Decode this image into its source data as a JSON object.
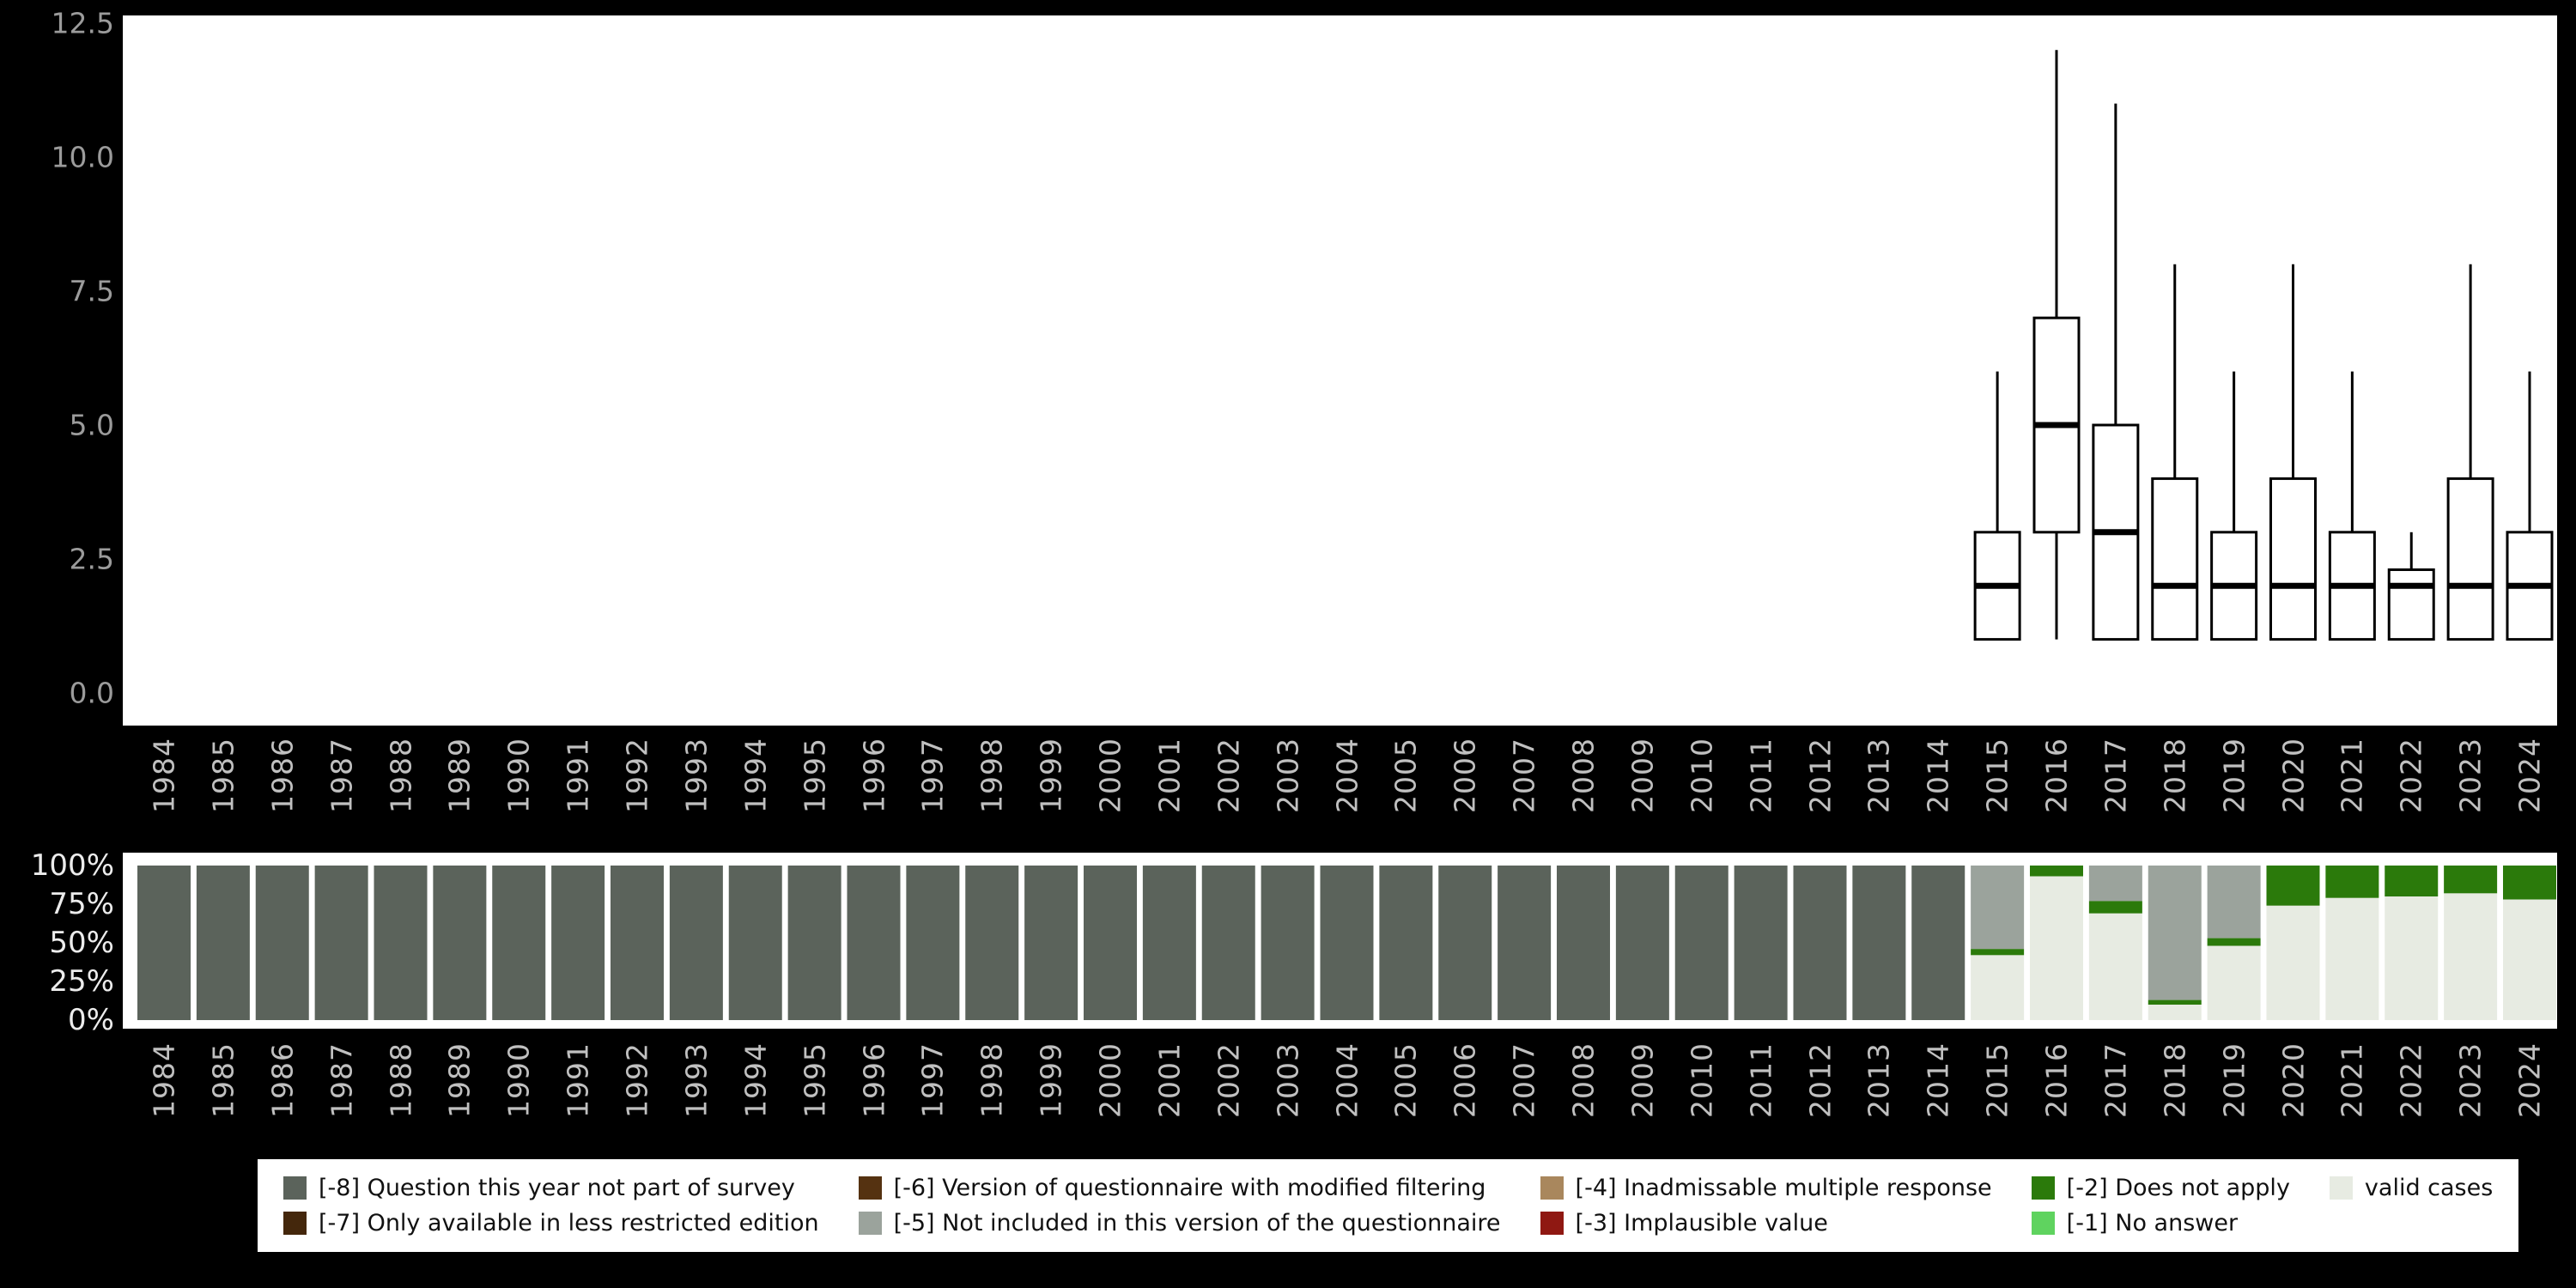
{
  "colors": {
    "background": "#000000",
    "panel_background": "#ffffff",
    "box_stroke": "#000000",
    "axis_text_top": "#9b9b9b",
    "axis_text_percent": "#ececec",
    "axis_text_years": "#c0c0c0"
  },
  "palette": {
    "-8": "#5b635b",
    "-7": "#44270c",
    "-6": "#553211",
    "-5": "#9ba39c",
    "-4": "#a9875d",
    "-3": "#8f1812",
    "-2": "#2b7a0b",
    "-1": "#5fd35f",
    "valid": "#e7ebe2"
  },
  "legend": {
    "items": [
      {
        "key": "-8",
        "label": "[-8] Question this year not part of survey"
      },
      {
        "key": "-7",
        "label": "[-7] Only available in less restricted edition"
      },
      {
        "key": "-6",
        "label": "[-6] Version of questionnaire with modified filtering"
      },
      {
        "key": "-5",
        "label": "[-5] Not included in this version of the questionnaire"
      },
      {
        "key": "-4",
        "label": "[-4] Inadmissable multiple response"
      },
      {
        "key": "-3",
        "label": "[-3] Implausible value"
      },
      {
        "key": "-2",
        "label": "[-2] Does not apply"
      },
      {
        "key": "-1",
        "label": "[-1] No answer"
      },
      {
        "key": "valid",
        "label": "valid cases"
      }
    ]
  },
  "chart_data": [
    {
      "type": "boxplot",
      "title": "",
      "xlabel": "",
      "ylabel": "",
      "ylim": [
        0,
        12.5
      ],
      "yticks": [
        {
          "label": "0.0",
          "value": 0
        },
        {
          "label": "2.5",
          "value": 2.5
        },
        {
          "label": "5.0",
          "value": 5
        },
        {
          "label": "7.5",
          "value": 7.5
        },
        {
          "label": "10.0",
          "value": 10
        },
        {
          "label": "12.5",
          "value": 12.5
        }
      ],
      "categories": [
        "1984",
        "1985",
        "1986",
        "1987",
        "1988",
        "1989",
        "1990",
        "1991",
        "1992",
        "1993",
        "1994",
        "1995",
        "1996",
        "1997",
        "1998",
        "1999",
        "2000",
        "2001",
        "2002",
        "2003",
        "2004",
        "2005",
        "2006",
        "2007",
        "2008",
        "2009",
        "2010",
        "2011",
        "2012",
        "2013",
        "2014",
        "2015",
        "2016",
        "2017",
        "2018",
        "2019",
        "2020",
        "2021",
        "2022",
        "2023",
        "2024"
      ],
      "boxes": [
        {
          "year": "2015",
          "lo": 1,
          "q1": 1,
          "med": 2,
          "q3": 3,
          "hi": 6
        },
        {
          "year": "2016",
          "lo": 1,
          "q1": 3,
          "med": 5,
          "q3": 7,
          "hi": 12
        },
        {
          "year": "2017",
          "lo": 1,
          "q1": 1,
          "med": 3,
          "q3": 5,
          "hi": 11
        },
        {
          "year": "2018",
          "lo": 1,
          "q1": 1,
          "med": 2,
          "q3": 4,
          "hi": 8
        },
        {
          "year": "2019",
          "lo": 1,
          "q1": 1,
          "med": 2,
          "q3": 3,
          "hi": 6
        },
        {
          "year": "2020",
          "lo": 1,
          "q1": 1,
          "med": 2,
          "q3": 4,
          "hi": 8
        },
        {
          "year": "2021",
          "lo": 1,
          "q1": 1,
          "med": 2,
          "q3": 3,
          "hi": 6
        },
        {
          "year": "2022",
          "lo": 1,
          "q1": 1,
          "med": 2,
          "q3": 2.3,
          "hi": 3
        },
        {
          "year": "2023",
          "lo": 1,
          "q1": 1,
          "med": 2,
          "q3": 4,
          "hi": 8
        },
        {
          "year": "2024",
          "lo": 1,
          "q1": 1,
          "med": 2,
          "q3": 3,
          "hi": 6
        }
      ]
    },
    {
      "type": "bar",
      "stacked": true,
      "percent": true,
      "title": "",
      "xlabel": "",
      "ylabel": "",
      "ylim": [
        0,
        100
      ],
      "yticks": [
        {
          "label": "0%",
          "value": 0
        },
        {
          "label": "25%",
          "value": 25
        },
        {
          "label": "50%",
          "value": 50
        },
        {
          "label": "75%",
          "value": 75
        },
        {
          "label": "100%",
          "value": 100
        }
      ],
      "categories": [
        "1984",
        "1985",
        "1986",
        "1987",
        "1988",
        "1989",
        "1990",
        "1991",
        "1992",
        "1993",
        "1994",
        "1995",
        "1996",
        "1997",
        "1998",
        "1999",
        "2000",
        "2001",
        "2002",
        "2003",
        "2004",
        "2005",
        "2006",
        "2007",
        "2008",
        "2009",
        "2010",
        "2011",
        "2012",
        "2013",
        "2014",
        "2015",
        "2016",
        "2017",
        "2018",
        "2019",
        "2020",
        "2021",
        "2022",
        "2023",
        "2024"
      ],
      "bars": [
        {
          "year": "1984",
          "segments": [
            {
              "key": "-8",
              "value": 100
            }
          ]
        },
        {
          "year": "1985",
          "segments": [
            {
              "key": "-8",
              "value": 100
            }
          ]
        },
        {
          "year": "1986",
          "segments": [
            {
              "key": "-8",
              "value": 100
            }
          ]
        },
        {
          "year": "1987",
          "segments": [
            {
              "key": "-8",
              "value": 100
            }
          ]
        },
        {
          "year": "1988",
          "segments": [
            {
              "key": "-8",
              "value": 100
            }
          ]
        },
        {
          "year": "1989",
          "segments": [
            {
              "key": "-8",
              "value": 100
            }
          ]
        },
        {
          "year": "1990",
          "segments": [
            {
              "key": "-8",
              "value": 100
            }
          ]
        },
        {
          "year": "1991",
          "segments": [
            {
              "key": "-8",
              "value": 100
            }
          ]
        },
        {
          "year": "1992",
          "segments": [
            {
              "key": "-8",
              "value": 100
            }
          ]
        },
        {
          "year": "1993",
          "segments": [
            {
              "key": "-8",
              "value": 100
            }
          ]
        },
        {
          "year": "1994",
          "segments": [
            {
              "key": "-8",
              "value": 100
            }
          ]
        },
        {
          "year": "1995",
          "segments": [
            {
              "key": "-8",
              "value": 100
            }
          ]
        },
        {
          "year": "1996",
          "segments": [
            {
              "key": "-8",
              "value": 100
            }
          ]
        },
        {
          "year": "1997",
          "segments": [
            {
              "key": "-8",
              "value": 100
            }
          ]
        },
        {
          "year": "1998",
          "segments": [
            {
              "key": "-8",
              "value": 100
            }
          ]
        },
        {
          "year": "1999",
          "segments": [
            {
              "key": "-8",
              "value": 100
            }
          ]
        },
        {
          "year": "2000",
          "segments": [
            {
              "key": "-8",
              "value": 100
            }
          ]
        },
        {
          "year": "2001",
          "segments": [
            {
              "key": "-8",
              "value": 100
            }
          ]
        },
        {
          "year": "2002",
          "segments": [
            {
              "key": "-8",
              "value": 100
            }
          ]
        },
        {
          "year": "2003",
          "segments": [
            {
              "key": "-8",
              "value": 100
            }
          ]
        },
        {
          "year": "2004",
          "segments": [
            {
              "key": "-8",
              "value": 100
            }
          ]
        },
        {
          "year": "2005",
          "segments": [
            {
              "key": "-8",
              "value": 100
            }
          ]
        },
        {
          "year": "2006",
          "segments": [
            {
              "key": "-8",
              "value": 100
            }
          ]
        },
        {
          "year": "2007",
          "segments": [
            {
              "key": "-8",
              "value": 100
            }
          ]
        },
        {
          "year": "2008",
          "segments": [
            {
              "key": "-8",
              "value": 100
            }
          ]
        },
        {
          "year": "2009",
          "segments": [
            {
              "key": "-8",
              "value": 100
            }
          ]
        },
        {
          "year": "2010",
          "segments": [
            {
              "key": "-8",
              "value": 100
            }
          ]
        },
        {
          "year": "2011",
          "segments": [
            {
              "key": "-8",
              "value": 100
            }
          ]
        },
        {
          "year": "2012",
          "segments": [
            {
              "key": "-8",
              "value": 100
            }
          ]
        },
        {
          "year": "2013",
          "segments": [
            {
              "key": "-8",
              "value": 100
            }
          ]
        },
        {
          "year": "2014",
          "segments": [
            {
              "key": "-8",
              "value": 100
            }
          ]
        },
        {
          "year": "2015",
          "segments": [
            {
              "key": "-5",
              "value": 54
            },
            {
              "key": "-2",
              "value": 4
            },
            {
              "key": "valid",
              "value": 42
            }
          ]
        },
        {
          "year": "2016",
          "segments": [
            {
              "key": "-2",
              "value": 7
            },
            {
              "key": "valid",
              "value": 93
            }
          ]
        },
        {
          "year": "2017",
          "segments": [
            {
              "key": "-5",
              "value": 23
            },
            {
              "key": "-2",
              "value": 8
            },
            {
              "key": "valid",
              "value": 69
            }
          ]
        },
        {
          "year": "2018",
          "segments": [
            {
              "key": "-5",
              "value": 87
            },
            {
              "key": "-2",
              "value": 3
            },
            {
              "key": "valid",
              "value": 10
            }
          ]
        },
        {
          "year": "2019",
          "segments": [
            {
              "key": "-5",
              "value": 47
            },
            {
              "key": "-2",
              "value": 5
            },
            {
              "key": "valid",
              "value": 48
            }
          ]
        },
        {
          "year": "2020",
          "segments": [
            {
              "key": "-2",
              "value": 26
            },
            {
              "key": "valid",
              "value": 74
            }
          ]
        },
        {
          "year": "2021",
          "segments": [
            {
              "key": "-2",
              "value": 21
            },
            {
              "key": "valid",
              "value": 79
            }
          ]
        },
        {
          "year": "2022",
          "segments": [
            {
              "key": "-2",
              "value": 20
            },
            {
              "key": "valid",
              "value": 80
            }
          ]
        },
        {
          "year": "2023",
          "segments": [
            {
              "key": "-2",
              "value": 18
            },
            {
              "key": "valid",
              "value": 82
            }
          ]
        },
        {
          "year": "2024",
          "segments": [
            {
              "key": "-2",
              "value": 22
            },
            {
              "key": "valid",
              "value": 78
            }
          ]
        }
      ]
    }
  ]
}
